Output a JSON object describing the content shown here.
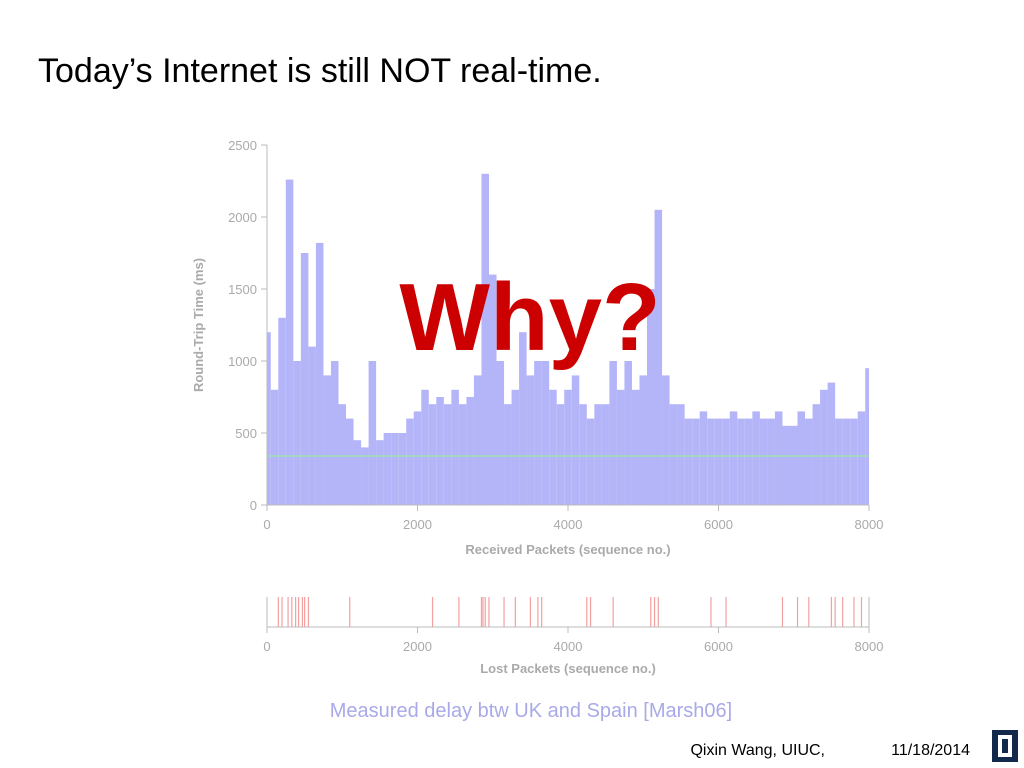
{
  "slide": {
    "title": "Today’s Internet is still NOT real-time.",
    "overlay": "Why?",
    "caption": "Measured delay btw UK and Spain [Marsh06]",
    "footer_author": "Qixin Wang, UIUC,",
    "footer_date": "11/18/2014"
  },
  "chart_data": [
    {
      "type": "bar",
      "xlabel": "Received Packets (sequence no.)",
      "ylabel": "Round-Trip Time (ms)",
      "color": "#b4b4f8",
      "xlim": [
        0,
        8000
      ],
      "ylim": [
        0,
        2500
      ],
      "xticks": [
        0,
        2000,
        4000,
        6000,
        8000
      ],
      "yticks": [
        0,
        500,
        1000,
        1500,
        2000,
        2500
      ],
      "reference_line": 340,
      "reference_color": "#9fe0b0",
      "x": [
        0,
        100,
        200,
        300,
        400,
        500,
        600,
        700,
        800,
        900,
        1000,
        1100,
        1200,
        1300,
        1400,
        1500,
        1600,
        1700,
        1800,
        1900,
        2000,
        2100,
        2200,
        2300,
        2400,
        2500,
        2600,
        2700,
        2800,
        2900,
        3000,
        3100,
        3200,
        3300,
        3400,
        3500,
        3600,
        3700,
        3800,
        3900,
        4000,
        4100,
        4200,
        4300,
        4400,
        4500,
        4600,
        4700,
        4800,
        4900,
        5000,
        5100,
        5200,
        5300,
        5400,
        5500,
        5600,
        5700,
        5800,
        5900,
        6000,
        6100,
        6200,
        6300,
        6400,
        6500,
        6600,
        6700,
        6800,
        6900,
        7000,
        7100,
        7200,
        7300,
        7400,
        7500,
        7600,
        7700,
        7800,
        7900,
        8000
      ],
      "values": [
        1200,
        800,
        1300,
        2260,
        1000,
        1750,
        1100,
        1820,
        900,
        1000,
        700,
        600,
        450,
        400,
        1000,
        450,
        500,
        500,
        500,
        600,
        650,
        800,
        700,
        750,
        700,
        800,
        700,
        750,
        900,
        2300,
        1600,
        1000,
        700,
        800,
        1200,
        900,
        1000,
        1000,
        800,
        700,
        800,
        900,
        700,
        600,
        700,
        700,
        1000,
        800,
        1000,
        800,
        900,
        1500,
        2050,
        900,
        700,
        700,
        600,
        600,
        650,
        600,
        600,
        600,
        650,
        600,
        600,
        650,
        600,
        600,
        650,
        550,
        550,
        650,
        600,
        700,
        800,
        850,
        600,
        600,
        600,
        650,
        950
      ]
    },
    {
      "type": "event",
      "xlabel": "Lost Packets (sequence no.)",
      "color": "#f4a0a0",
      "xlim": [
        0,
        8000
      ],
      "xticks": [
        0,
        2000,
        4000,
        6000,
        8000
      ],
      "x": [
        150,
        200,
        280,
        330,
        380,
        420,
        470,
        500,
        550,
        1100,
        2200,
        2550,
        2850,
        2870,
        2900,
        2950,
        3150,
        3300,
        3500,
        3600,
        3650,
        4250,
        4300,
        4600,
        5100,
        5150,
        5200,
        5900,
        6100,
        6850,
        7050,
        7200,
        7500,
        7550,
        7650,
        7800,
        7900
      ]
    }
  ]
}
